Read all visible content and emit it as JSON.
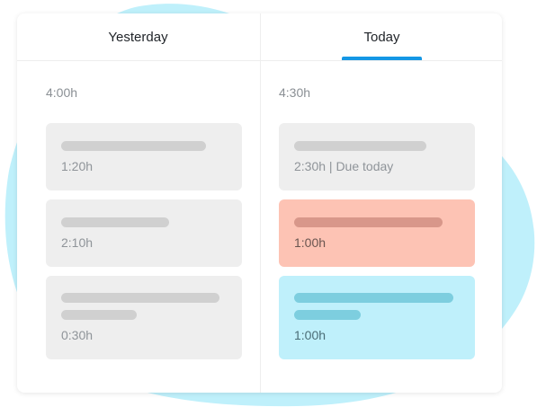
{
  "colors": {
    "background_blob": "#bff0fb",
    "tab_active_indicator": "#1597e5",
    "task_default": "#eeeeee",
    "task_highlight_red": "#fdc3b4",
    "task_highlight_blue": "#bff0fb"
  },
  "tabs": [
    {
      "label": "Yesterday",
      "active": false
    },
    {
      "label": "Today",
      "active": true
    }
  ],
  "columns": {
    "yesterday": {
      "total": "4:00h",
      "tasks": [
        {
          "duration": "1:20h",
          "title_lines": 1,
          "color": "default"
        },
        {
          "duration": "2:10h",
          "title_lines": 1,
          "color": "default"
        },
        {
          "duration": "0:30h",
          "title_lines": 2,
          "color": "default"
        }
      ]
    },
    "today": {
      "total": "4:30h",
      "tasks": [
        {
          "duration": "2:30h | Due today",
          "title_lines": 1,
          "color": "default"
        },
        {
          "duration": "1:00h",
          "title_lines": 1,
          "color": "red"
        },
        {
          "duration": "1:00h",
          "title_lines": 2,
          "color": "blue"
        }
      ]
    }
  }
}
